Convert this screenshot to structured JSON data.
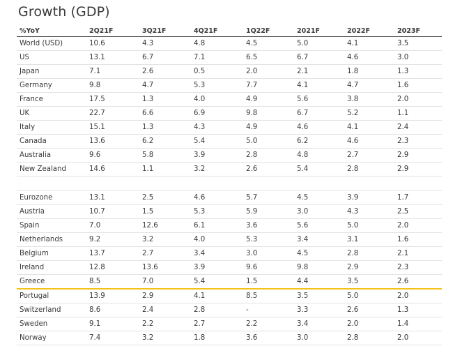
{
  "title": "Growth (GDP)",
  "colors": {
    "highlight_line": "#f2c21b",
    "header_rule": "#4a4a4a",
    "row_rule": "#e3e3e3"
  },
  "headers": [
    "%YoY",
    "2Q21F",
    "3Q21F",
    "4Q21F",
    "1Q22F",
    "2021F",
    "2022F",
    "2023F"
  ],
  "rows": [
    [
      "World (USD)",
      "10.6",
      "4.3",
      "4.8",
      "4.5",
      "5.0",
      "4.1",
      "3.5"
    ],
    [
      "US",
      "13.1",
      "6.7",
      "7.1",
      "6.5",
      "6.7",
      "4.6",
      "3.0"
    ],
    [
      "Japan",
      "7.1",
      "2.6",
      "0.5",
      "2.0",
      "2.1",
      "1.8",
      "1.3"
    ],
    [
      "Germany",
      "9.8",
      "4.7",
      "5.3",
      "7.7",
      "4.1",
      "4.7",
      "1.6"
    ],
    [
      "France",
      "17.5",
      "1.3",
      "4.0",
      "4.9",
      "5.6",
      "3.8",
      "2.0"
    ],
    [
      "UK",
      "22.7",
      "6.6",
      "6.9",
      "9.8",
      "6.7",
      "5.2",
      "1.1"
    ],
    [
      "Italy",
      "15.1",
      "1.3",
      "4.3",
      "4.9",
      "4.6",
      "4.1",
      "2.4"
    ],
    [
      "Canada",
      "13.6",
      "6.2",
      "5.4",
      "5.0",
      "6.2",
      "4.6",
      "2.3"
    ],
    [
      "Australia",
      "9.6",
      "5.8",
      "3.9",
      "2.8",
      "4.8",
      "2.7",
      "2.9"
    ],
    [
      "New Zealand",
      "14.6",
      "1.1",
      "3.2",
      "2.6",
      "5.4",
      "2.8",
      "2.9"
    ],
    [
      "",
      "",
      "",
      "",
      "",
      "",
      "",
      ""
    ],
    [
      "Eurozone",
      "13.1",
      "2.5",
      "4.6",
      "5.7",
      "4.5",
      "3.9",
      "1.7"
    ],
    [
      "Austria",
      "10.7",
      "1.5",
      "5.3",
      "5.9",
      "3.0",
      "4.3",
      "2.5"
    ],
    [
      "Spain",
      "7.0",
      "12.6",
      "6.1",
      "3.6",
      "5.6",
      "5.0",
      "2.0"
    ],
    [
      "Netherlands",
      "9.2",
      "3.2",
      "4.0",
      "5.3",
      "3.4",
      "3.1",
      "1.6"
    ],
    [
      "Belgium",
      "13.7",
      "2.7",
      "3.4",
      "3.0",
      "4.5",
      "2.8",
      "2.1"
    ],
    [
      "Ireland",
      "12.8",
      "13.6",
      "3.9",
      "9.6",
      "9.8",
      "2.9",
      "2.3"
    ],
    [
      "Greece",
      "8.5",
      "7.0",
      "5.4",
      "1.5",
      "4.4",
      "3.5",
      "2.6"
    ],
    [
      "Portugal",
      "13.9",
      "2.9",
      "4.1",
      "8.5",
      "3.5",
      "5.0",
      "2.0"
    ],
    [
      "Switzerland",
      "8.6",
      "2.4",
      "2.8",
      "-",
      "3.3",
      "2.6",
      "1.3"
    ],
    [
      "Sweden",
      "9.1",
      "2.2",
      "2.7",
      "2.2",
      "3.4",
      "2.0",
      "1.4"
    ],
    [
      "Norway",
      "7.4",
      "3.2",
      "1.8",
      "3.6",
      "3.0",
      "2.8",
      "2.0"
    ]
  ]
}
